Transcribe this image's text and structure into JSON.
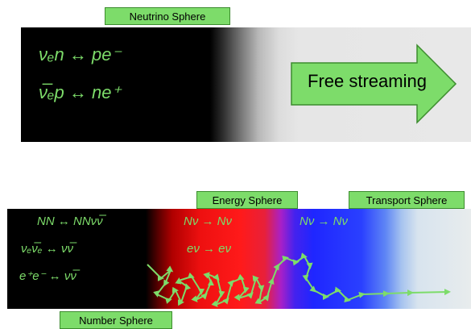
{
  "colors": {
    "accent_green": "#7ddc6a",
    "label_border": "#3c8c2e"
  },
  "labels": {
    "neutrino_sphere": "Neutrino Sphere",
    "energy_sphere": "Energy Sphere",
    "transport_sphere": "Transport Sphere",
    "number_sphere": "Number Sphere",
    "free_streaming": "Free streaming"
  },
  "equations_top": [
    "νₑn ↔ pe⁻",
    "ν̅ₑp ↔ ne⁺"
  ],
  "equations_bottom": {
    "black_region": [
      "NN ↔ NNνν̅",
      "νₑν̅ₑ ↔ νν̅",
      "e⁺e⁻ ↔ νν̅"
    ],
    "red_region": [
      "Nν → Nν",
      "eν → eν"
    ],
    "blue_region": [
      "Nν → Nν"
    ]
  },
  "icons": {
    "arrow": "right-arrow-icon",
    "walk": "random-walk-arrow"
  }
}
